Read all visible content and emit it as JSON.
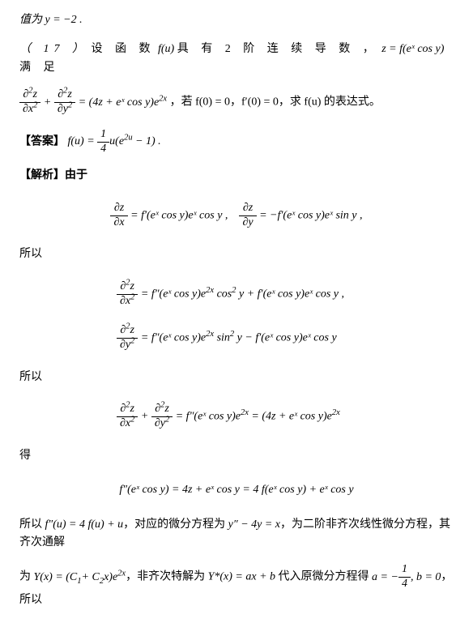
{
  "body": {
    "text_color": "#000000",
    "background_color": "#ffffff",
    "font_main": "SimSun",
    "font_math": "Times New Roman",
    "font_size_body": 14,
    "font_size_sup": 10
  },
  "line0": "值为 y = −2 .",
  "problem": {
    "number": "（ 17 ）",
    "lead": "设 函 数",
    "func": "f(u)",
    "mid": "具 有 2 阶 连 续 导 数 ，",
    "zdef": "z = f(eˣ cos y)",
    "tail": "满 足"
  },
  "eqline": {
    "lhs_num_a": "∂",
    "lhs_den_a": "∂x",
    "lhs_sq_a": "2",
    "lhs_num_b": "∂",
    "lhs_den_b": "∂y",
    "z": "z",
    "rhs": "= (4z + eˣ cos y)e",
    "exp2x": "2x",
    "cond1": "，若 f(0) = 0，f′(0) = 0，求 f(u) 的表达式。"
  },
  "labels": {
    "answer": "【答案】",
    "analysis": "【解析】由于",
    "so": "所以",
    "get": "得",
    "hence_prefix": "所以 ",
    "ode_mid": "，对应的微分方程为 ",
    "ode_tail": "，为二阶非齐次线性微分方程，其齐次通解",
    "yh_prefix": "为 ",
    "yp_mid": "，非齐次特解为 ",
    "yp_tail": " 代入原微分方程得 ",
    "final_tail": "，所以"
  },
  "answer": {
    "fu": "f(u) =",
    "frac_num": "1",
    "frac_den": "4",
    "rest": "u(e",
    "exp": "2u",
    "close": " − 1) ."
  },
  "d1": {
    "zx_l": "= f′(eˣ cos y)eˣ cos y ,",
    "zy_l": "= −f′(eˣ cos y)eˣ sin y ,"
  },
  "d2": {
    "xx": "= f″(eˣ cos y)e",
    "xx_exp": "2x",
    "xx2": " cos",
    "xx2sup": "2",
    "xx3": " y + f′(eˣ cos y)eˣ cos y ,",
    "yy": "= f″(eˣ cos y)e",
    "yy_exp": "2x",
    "yy2": " sin",
    "yy2sup": "2",
    "yy3": " y − f′(eˣ cos y)eˣ cos y"
  },
  "sum": {
    "eq": "= f″(eˣ cos y)e",
    "e1": "2x",
    "mid": " = (4z + eˣ cos y)e",
    "e2": "2x"
  },
  "reduced": {
    "eq": "f″(eˣ cos y) = 4z + eˣ cos y = 4 f(eˣ cos y) + eˣ cos y"
  },
  "ode": {
    "fu": "f″(u) = 4 f(u) + u",
    "std": "y″ − 4y = x"
  },
  "yh": {
    "expr": "Y(x) = (C",
    "s1": "1",
    "mid": "+ C",
    "s2": "2",
    "x": "x)e",
    "exp": "2x"
  },
  "yp": {
    "expr": "Y*(x) = ax + b",
    "a_eq": "a = −",
    "a_num": "1",
    "a_den": "4",
    "b_eq": ", b = 0"
  }
}
